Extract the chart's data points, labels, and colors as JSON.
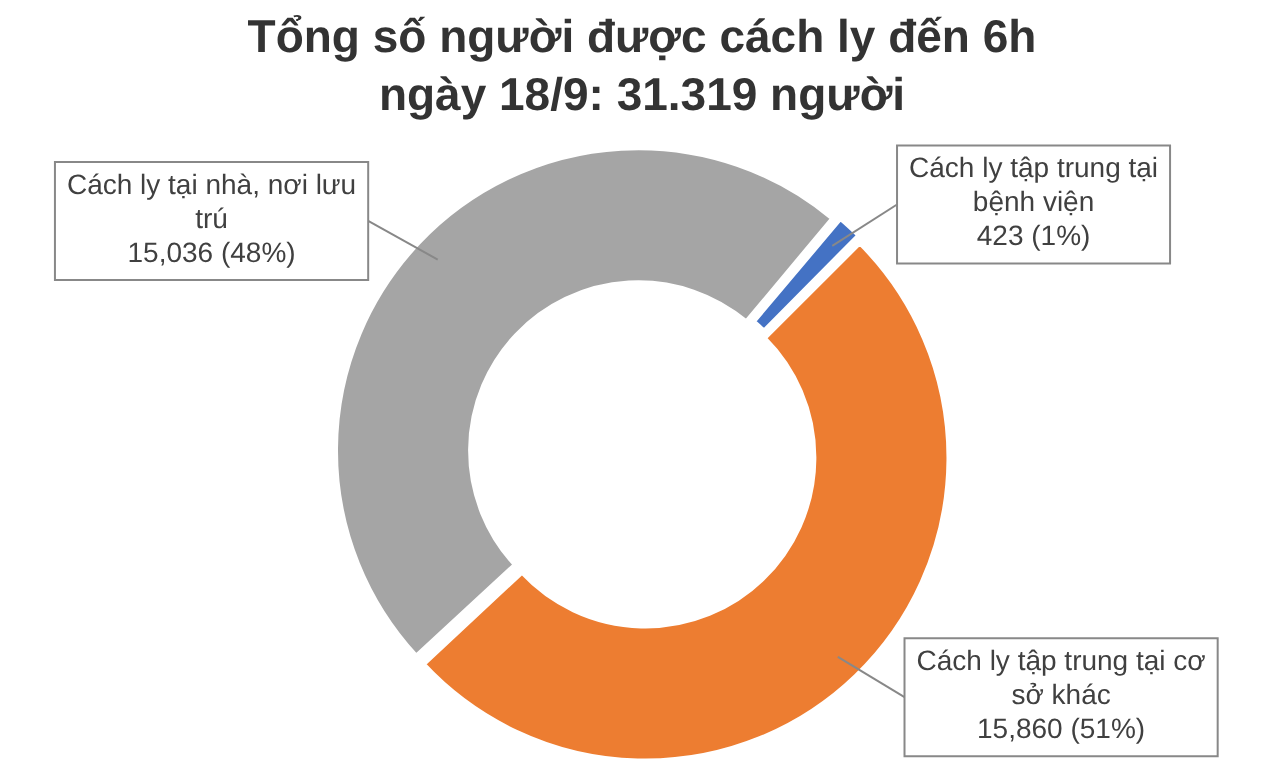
{
  "chart_data": {
    "type": "donut",
    "title": "Tổng số người được cách ly đến 6h ngày 18/9: 31.319 người",
    "categories": [
      "Cách ly tập trung tại bệnh viện",
      "Cách ly tập trung tại cơ sở khác",
      "Cách ly tại nhà, nơi lưu trú"
    ],
    "values": [
      423,
      15860,
      15036
    ],
    "colors": [
      "#4472c4",
      "#ed7d31",
      "#a5a5a5"
    ],
    "value_labels": [
      "423 (1%)",
      "15,860 (51%)",
      "15,036 (48%)"
    ],
    "legend": false
  }
}
